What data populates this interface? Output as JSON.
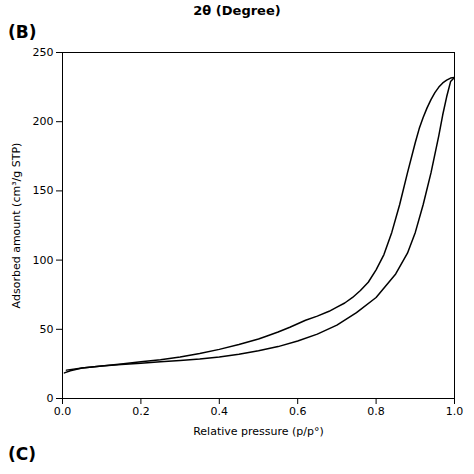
{
  "chart_data": {
    "type": "line",
    "title": "2θ (Degree)",
    "annotations": [
      "(B)",
      "(C)"
    ],
    "x_label": "Relative pressure (p/p°)",
    "y_label": "Adsorbed amount (cm³/g STP)",
    "xlim": [
      0.0,
      1.0
    ],
    "ylim": [
      0,
      250
    ],
    "xticks": [
      {
        "value": 0.0,
        "label": "0.0"
      },
      0.2,
      0.4,
      0.6,
      0.8,
      {
        "value": 1.0,
        "label": "1.0"
      }
    ],
    "yticks": [
      0,
      50,
      100,
      150,
      200,
      250
    ],
    "grid": false,
    "series": [
      {
        "color": "#000000",
        "x": [
          0.005,
          0.02,
          0.05,
          0.1,
          0.15,
          0.2,
          0.25,
          0.3,
          0.35,
          0.4,
          0.45,
          0.5,
          0.55,
          0.6,
          0.65,
          0.7,
          0.75,
          0.8,
          0.85,
          0.88,
          0.9,
          0.92,
          0.94,
          0.96,
          0.97,
          0.98,
          0.99,
          1.0
        ],
        "values": [
          18.5,
          20.0,
          22.0,
          23.5,
          24.5,
          25.5,
          26.5,
          27.5,
          28.5,
          30.0,
          32.0,
          34.5,
          37.5,
          41.5,
          46.5,
          53.0,
          62.0,
          73.0,
          90.0,
          105.0,
          120.0,
          140.0,
          163.0,
          190.0,
          205.0,
          218.0,
          229.0,
          232.0
        ]
      },
      {
        "color": "#000000",
        "x": [
          1.0,
          0.99,
          0.98,
          0.97,
          0.96,
          0.95,
          0.94,
          0.93,
          0.92,
          0.91,
          0.9,
          0.88,
          0.86,
          0.84,
          0.82,
          0.8,
          0.78,
          0.76,
          0.74,
          0.72,
          0.7,
          0.68,
          0.65,
          0.62,
          0.6,
          0.58,
          0.55,
          0.52,
          0.5,
          0.45,
          0.4,
          0.35,
          0.3,
          0.25,
          0.2,
          0.15,
          0.1,
          0.05,
          0.01
        ],
        "values": [
          232.0,
          231.5,
          230.0,
          228.0,
          225.0,
          221.0,
          216.0,
          210.0,
          203.0,
          195.0,
          185.0,
          163.0,
          140.0,
          120.0,
          104.0,
          93.0,
          84.0,
          78.0,
          73.0,
          69.0,
          66.0,
          63.0,
          59.5,
          56.5,
          54.0,
          51.5,
          48.0,
          45.0,
          43.0,
          39.0,
          35.5,
          32.5,
          30.0,
          28.0,
          26.5,
          25.0,
          23.5,
          22.0,
          20.5
        ]
      }
    ]
  }
}
